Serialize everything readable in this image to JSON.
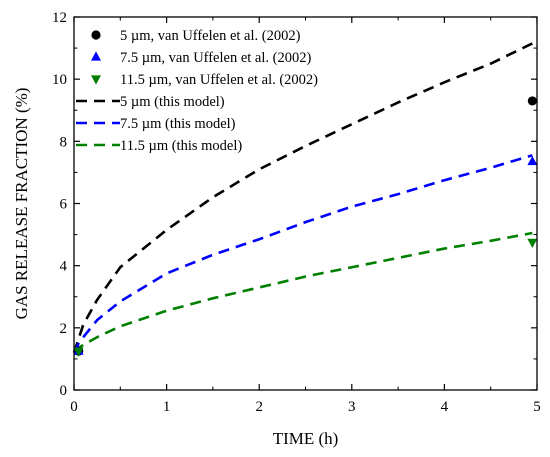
{
  "chart_data": {
    "type": "scatter",
    "title": "",
    "xlabel": "TIME (h)",
    "ylabel": "GAS RELEASE FRACTION (%)",
    "xlim": [
      0,
      5
    ],
    "ylim": [
      0,
      12
    ],
    "xticks": [
      "0",
      "1",
      "2",
      "3",
      "4",
      "5"
    ],
    "yticks": [
      "0",
      "2",
      "4",
      "6",
      "8",
      "10",
      "12"
    ],
    "grid": false,
    "legend_position": "top-left",
    "series": [
      {
        "name": "5 µm, van Uffelen et al. (2002)",
        "kind": "marker",
        "marker": "circle",
        "color": "#000000",
        "points": [
          [
            4.95,
            9.3
          ],
          [
            0.05,
            1.25
          ]
        ]
      },
      {
        "name": "7.5 µm, van Uffelen et al. (2002)",
        "kind": "marker",
        "marker": "triangle-up",
        "color": "#0000ff",
        "points": [
          [
            4.95,
            7.35
          ],
          [
            0.05,
            1.25
          ]
        ]
      },
      {
        "name": "11.5 µm, van Uffelen et al. (2002)",
        "kind": "marker",
        "marker": "triangle-down",
        "color": "#008000",
        "points": [
          [
            4.95,
            4.75
          ],
          [
            0.05,
            1.25
          ]
        ]
      },
      {
        "name": "5 µm (this model)",
        "kind": "line",
        "dash": true,
        "color": "#000000",
        "points": [
          [
            0,
            1.2
          ],
          [
            0.05,
            1.65
          ],
          [
            0.1,
            2.1
          ],
          [
            0.25,
            2.9
          ],
          [
            0.5,
            3.95
          ],
          [
            1,
            5.15
          ],
          [
            1.5,
            6.2
          ],
          [
            2,
            7.1
          ],
          [
            2.5,
            7.85
          ],
          [
            3,
            8.55
          ],
          [
            3.5,
            9.25
          ],
          [
            4,
            9.9
          ],
          [
            4.5,
            10.5
          ],
          [
            4.95,
            11.15
          ]
        ]
      },
      {
        "name": "7.5 µm (this model)",
        "kind": "line",
        "dash": true,
        "color": "#0000ff",
        "points": [
          [
            0,
            1.2
          ],
          [
            0.05,
            1.5
          ],
          [
            0.1,
            1.7
          ],
          [
            0.25,
            2.25
          ],
          [
            0.5,
            2.85
          ],
          [
            1,
            3.75
          ],
          [
            1.5,
            4.35
          ],
          [
            2,
            4.85
          ],
          [
            2.5,
            5.4
          ],
          [
            3,
            5.9
          ],
          [
            3.5,
            6.3
          ],
          [
            4,
            6.75
          ],
          [
            4.5,
            7.15
          ],
          [
            4.95,
            7.55
          ]
        ]
      },
      {
        "name": "11.5 µm (this model)",
        "kind": "line",
        "dash": true,
        "color": "#008000",
        "points": [
          [
            0,
            1.25
          ],
          [
            0.05,
            1.35
          ],
          [
            0.1,
            1.45
          ],
          [
            0.25,
            1.7
          ],
          [
            0.5,
            2.05
          ],
          [
            1,
            2.55
          ],
          [
            1.5,
            2.95
          ],
          [
            2,
            3.3
          ],
          [
            2.5,
            3.65
          ],
          [
            3,
            3.95
          ],
          [
            3.5,
            4.25
          ],
          [
            4,
            4.55
          ],
          [
            4.5,
            4.8
          ],
          [
            4.95,
            5.05
          ]
        ]
      }
    ]
  }
}
